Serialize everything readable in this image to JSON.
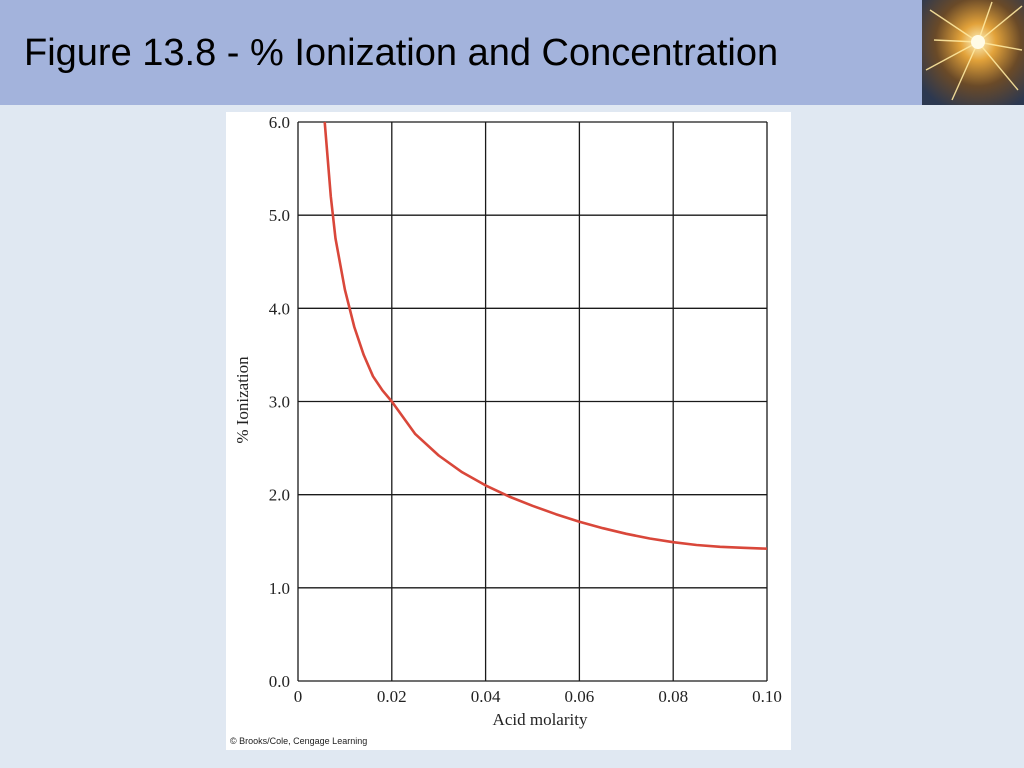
{
  "slide": {
    "title": "Figure 13.8 - % Ionization and Concentration",
    "credit": "© Brooks/Cole, Cengage Learning",
    "header_color": "#a3b3dc",
    "background_color": "#e0e8f2"
  },
  "chart_data": {
    "type": "line",
    "title": "",
    "xlabel": "Acid molarity",
    "ylabel": "% Ionization",
    "xlim": [
      0,
      0.1
    ],
    "ylim": [
      0.0,
      6.0
    ],
    "x_ticks": [
      "0",
      "0.02",
      "0.04",
      "0.06",
      "0.08",
      "0.10"
    ],
    "y_ticks": [
      "0.0",
      "1.0",
      "2.0",
      "3.0",
      "4.0",
      "5.0",
      "6.0"
    ],
    "grid": true,
    "line_color": "#d9473a",
    "series": [
      {
        "x": [
          0.0057,
          0.007,
          0.008,
          0.01,
          0.012,
          0.014,
          0.016,
          0.018,
          0.02,
          0.025,
          0.03,
          0.035,
          0.04,
          0.045,
          0.05,
          0.055,
          0.06,
          0.065,
          0.07,
          0.075,
          0.08,
          0.085,
          0.09,
          0.095,
          0.1
        ],
        "y": [
          6.0,
          5.2,
          4.75,
          4.2,
          3.8,
          3.5,
          3.27,
          3.12,
          3.0,
          2.65,
          2.42,
          2.24,
          2.1,
          1.98,
          1.88,
          1.79,
          1.71,
          1.64,
          1.58,
          1.53,
          1.49,
          1.46,
          1.44,
          1.43,
          1.42
        ]
      }
    ]
  }
}
